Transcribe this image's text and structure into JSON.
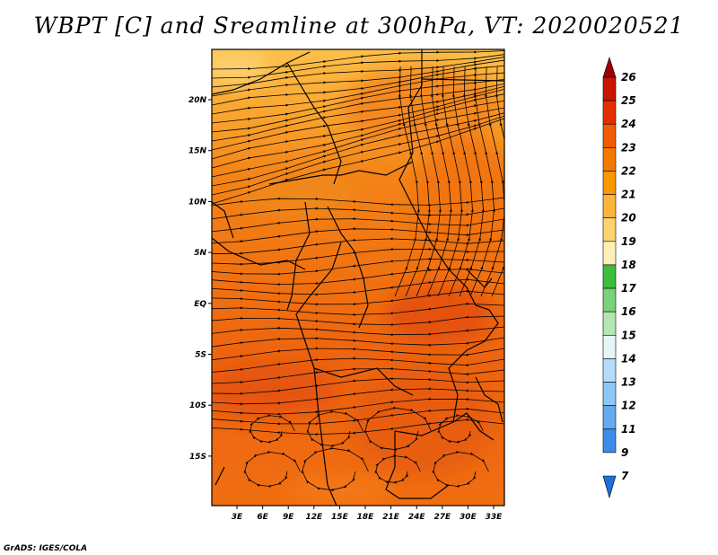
{
  "title": "WBPT [C] and Sreamline at 300hPa, VT: 2020020521",
  "footer": "GrADS: IGES/COLA",
  "map": {
    "lon_labels": [
      "3E",
      "6E",
      "9E",
      "12E",
      "15E",
      "18E",
      "21E",
      "24E",
      "27E",
      "30E",
      "33E"
    ],
    "lat_labels": [
      "20N",
      "15N",
      "10N",
      "5N",
      "EQ",
      "5S",
      "10S",
      "15S"
    ]
  },
  "colorbar": {
    "labels": [
      "26",
      "25",
      "24",
      "23",
      "22",
      "21",
      "20",
      "19",
      "18",
      "17",
      "16",
      "15",
      "14",
      "13",
      "12",
      "11",
      "9",
      "7"
    ],
    "colors": [
      "#a00000",
      "#c81400",
      "#e62d00",
      "#f05a00",
      "#f57800",
      "#fa9600",
      "#fcb43c",
      "#fed26e",
      "#fef0b4",
      "#3cbe3c",
      "#78d278",
      "#b4e6b4",
      "#e6f5f5",
      "#b4dcfa",
      "#8cc8f5",
      "#64aaf0",
      "#3c8ceb",
      "#1e6edc"
    ]
  }
}
